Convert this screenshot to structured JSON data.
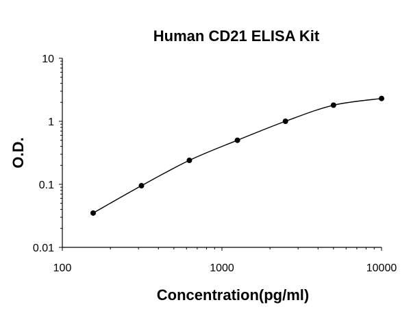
{
  "chart_data": {
    "type": "scatter",
    "title": "Human CD21 ELISA Kit",
    "xlabel": "Concentration(pg/ml)",
    "ylabel": "O.D.",
    "x_scale": "log",
    "y_scale": "log",
    "xlim": [
      100,
      10000
    ],
    "ylim": [
      0.01,
      10
    ],
    "x_ticks": [
      "100",
      "1000",
      "10000"
    ],
    "y_ticks": [
      "0.01",
      "0.1",
      "1",
      "10"
    ],
    "series": [
      {
        "x": [
          156,
          313,
          625,
          1250,
          2500,
          5000,
          10000
        ],
        "y": [
          0.035,
          0.095,
          0.24,
          0.5,
          1.0,
          1.8,
          2.3
        ]
      }
    ],
    "fit_curve": true,
    "grid": false,
    "legend": "none",
    "colors": {
      "points": "#000000",
      "curve": "#000000",
      "axes": "#000000"
    }
  }
}
